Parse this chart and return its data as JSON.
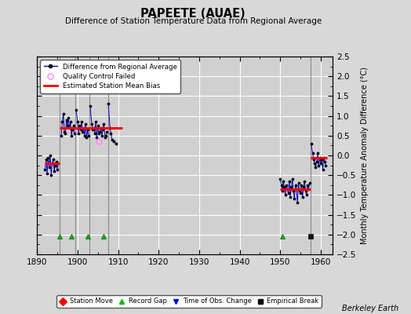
{
  "title": "PAPEETE (AUAE)",
  "subtitle": "Difference of Station Temperature Data from Regional Average",
  "ylabel": "Monthly Temperature Anomaly Difference (°C)",
  "credit": "Berkeley Earth",
  "xlim": [
    1890,
    1963
  ],
  "ylim": [
    -2.5,
    2.5
  ],
  "xticks": [
    1890,
    1900,
    1910,
    1920,
    1930,
    1940,
    1950,
    1960
  ],
  "yticks": [
    -2.5,
    -2,
    -1.5,
    -1,
    -0.5,
    0,
    0.5,
    1,
    1.5,
    2,
    2.5
  ],
  "bg_color": "#d8d8d8",
  "plot_bg_color": "#d0d0d0",
  "grid_color": "#ffffff",
  "vertical_lines": [
    1895.5,
    1899.5,
    1903.0,
    1907.5,
    1957.5
  ],
  "segments": [
    {
      "x_start": 1892.0,
      "x_end": 1895.5,
      "bias": -0.2,
      "data_x": [
        1892.0,
        1892.25,
        1892.5,
        1892.75,
        1893.0,
        1893.25,
        1893.5,
        1893.75,
        1894.0,
        1894.25,
        1894.5,
        1894.75,
        1895.0,
        1895.25
      ],
      "data_y": [
        -0.35,
        -0.1,
        -0.45,
        -0.05,
        -0.3,
        0.0,
        -0.5,
        -0.2,
        -0.1,
        -0.4,
        -0.25,
        -0.15,
        -0.35,
        -0.2
      ]
    },
    {
      "x_start": 1895.5,
      "x_end": 1899.5,
      "bias": 0.7,
      "data_x": [
        1896.0,
        1896.25,
        1896.5,
        1896.75,
        1897.0,
        1897.25,
        1897.5,
        1897.75,
        1898.0,
        1898.25,
        1898.5,
        1898.75,
        1899.0,
        1899.25
      ],
      "data_y": [
        0.5,
        0.85,
        1.05,
        0.6,
        0.55,
        0.9,
        0.75,
        0.95,
        0.7,
        0.85,
        0.5,
        0.65,
        0.75,
        0.55
      ]
    },
    {
      "x_start": 1899.5,
      "x_end": 1903.0,
      "bias": 0.7,
      "data_x": [
        1899.7,
        1900.0,
        1900.25,
        1900.5,
        1900.75,
        1901.0,
        1901.25,
        1901.5,
        1901.75,
        1902.0,
        1902.25,
        1902.5,
        1902.75
      ],
      "data_y": [
        1.15,
        0.85,
        0.55,
        0.75,
        0.65,
        0.85,
        0.6,
        0.7,
        0.5,
        0.8,
        0.45,
        0.65,
        0.5
      ]
    },
    {
      "x_start": 1903.0,
      "x_end": 1907.5,
      "bias": 0.7,
      "data_x": [
        1903.1,
        1903.5,
        1903.75,
        1904.0,
        1904.25,
        1904.5,
        1904.75,
        1905.0,
        1905.25,
        1905.5,
        1905.75,
        1906.0,
        1906.25,
        1906.5,
        1906.75,
        1907.0,
        1907.25
      ],
      "data_y": [
        1.25,
        0.8,
        0.65,
        0.7,
        0.55,
        0.85,
        0.45,
        0.75,
        0.55,
        0.6,
        0.7,
        0.5,
        0.65,
        0.8,
        0.45,
        0.5,
        0.6
      ],
      "qc_x": [
        1905.3
      ],
      "qc_y": [
        0.35
      ]
    },
    {
      "x_start": 1907.5,
      "x_end": 1911.0,
      "bias": 0.7,
      "data_x": [
        1907.6,
        1908.0,
        1908.25,
        1908.5,
        1909.0,
        1909.5
      ],
      "data_y": [
        1.3,
        0.7,
        0.55,
        0.4,
        0.35,
        0.3
      ]
    },
    {
      "x_start": 1950.0,
      "x_end": 1957.5,
      "bias": -0.85,
      "data_x": [
        1950.0,
        1950.25,
        1950.5,
        1950.75,
        1951.0,
        1951.25,
        1951.5,
        1951.75,
        1952.0,
        1952.25,
        1952.5,
        1952.75,
        1953.0,
        1953.25,
        1953.5,
        1953.75,
        1954.0,
        1954.25,
        1954.5,
        1954.75,
        1955.0,
        1955.25,
        1955.5,
        1955.75,
        1956.0,
        1956.25,
        1956.5,
        1956.75,
        1957.0,
        1957.25
      ],
      "data_y": [
        -0.6,
        -0.75,
        -0.9,
        -0.65,
        -0.8,
        -1.0,
        -0.75,
        -0.85,
        -0.95,
        -0.65,
        -1.05,
        -0.8,
        -0.6,
        -0.9,
        -1.1,
        -0.75,
        -0.85,
        -1.2,
        -0.7,
        -0.9,
        -0.95,
        -0.75,
        -1.05,
        -0.8,
        -0.65,
        -0.9,
        -1.0,
        -0.75,
        -0.85,
        -0.7
      ]
    },
    {
      "x_start": 1957.5,
      "x_end": 1961.5,
      "bias": -0.05,
      "data_x": [
        1957.6,
        1958.0,
        1958.25,
        1958.5,
        1958.75,
        1959.0,
        1959.25,
        1959.5,
        1959.75,
        1960.0,
        1960.25,
        1960.5,
        1960.75,
        1961.0,
        1961.25
      ],
      "data_y": [
        0.3,
        0.05,
        -0.1,
        -0.2,
        -0.3,
        -0.15,
        0.05,
        -0.25,
        -0.05,
        -0.2,
        -0.1,
        -0.35,
        -0.05,
        -0.15,
        -0.25
      ]
    }
  ],
  "record_gaps_x": [
    1895.5,
    1898.5,
    1902.5,
    1906.5,
    1950.5
  ],
  "empirical_breaks_x": [
    1957.5
  ],
  "line_color": "#0000cc",
  "dot_color": "#000000",
  "bias_color": "#ff0000",
  "qc_color": "#ff88ff",
  "vline_color": "#888888",
  "marker_y": -2.05
}
